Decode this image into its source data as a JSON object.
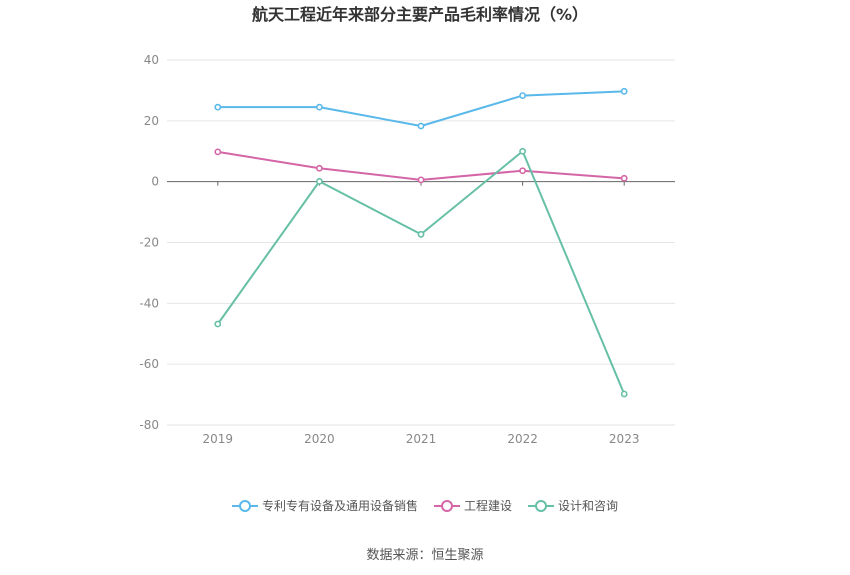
{
  "chart_data": {
    "type": "line",
    "title": "航天工程近年来部分主要产品毛利率情况（%）",
    "categories": [
      "2019",
      "2020",
      "2021",
      "2022",
      "2023"
    ],
    "ylim": [
      -80,
      40
    ],
    "yticks": [
      40,
      20,
      0,
      -20,
      -40,
      -60,
      -80
    ],
    "grid": true,
    "legend_position": "bottom",
    "series": [
      {
        "name": "专利专有设备及通用设备销售",
        "color": "#5ab8ea",
        "values": [
          24.5,
          24.5,
          18.3,
          28.3,
          29.7
        ]
      },
      {
        "name": "工程建设",
        "color": "#d465a6",
        "values": [
          9.8,
          4.4,
          0.6,
          3.6,
          1.1
        ]
      },
      {
        "name": "设计和咨询",
        "color": "#66c0a6",
        "values": [
          -46.8,
          0.1,
          -17.3,
          10.0,
          -69.8
        ]
      }
    ]
  },
  "source_text": "数据来源：恒生聚源"
}
